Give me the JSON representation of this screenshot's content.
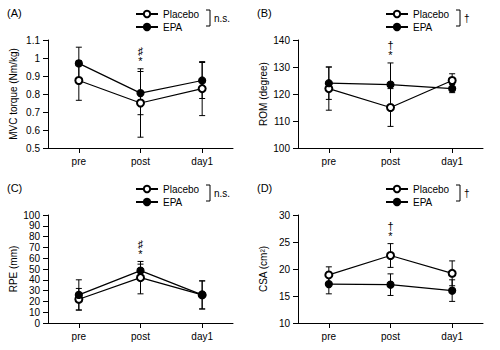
{
  "chart_data": [
    {
      "type": "line",
      "title": "(A)",
      "y_label": "MVC torque (Nm/kg)",
      "categories": [
        "pre",
        "post",
        "day1"
      ],
      "series": [
        {
          "name": "Placebo",
          "color": "#000000",
          "marker": "circle_open",
          "line_style": "solid",
          "values": [
            0.875,
            0.75,
            0.83
          ],
          "errors": [
            0.11,
            0.19,
            0.15
          ]
        },
        {
          "name": "EPA",
          "color": "#000000",
          "marker": "circle",
          "line_style": "solid",
          "values": [
            0.97,
            0.805,
            0.875
          ],
          "errors": [
            0.09,
            0.12,
            0.1
          ]
        }
      ],
      "ylim": [
        0.5,
        1.1
      ],
      "yticks": [
        0.5,
        0.6,
        0.7,
        0.8,
        0.9,
        1,
        1.1
      ],
      "grid": false,
      "legend": "upper right",
      "legend_note": "n.s.",
      "annotations": [
        {
          "text": "♯",
          "x": "post"
        },
        {
          "text": "*",
          "x": "post"
        }
      ]
    },
    {
      "type": "line",
      "title": "(B)",
      "y_label": "ROM (degree)",
      "categories": [
        "pre",
        "post",
        "day1"
      ],
      "series": [
        {
          "name": "Placebo",
          "color": "#000000",
          "marker": "circle_open",
          "line_style": "solid",
          "values": [
            122,
            115,
            125
          ],
          "errors": [
            8,
            7,
            2.5
          ]
        },
        {
          "name": "EPA",
          "color": "#000000",
          "marker": "circle",
          "line_style": "solid",
          "values": [
            124,
            123.5,
            122
          ],
          "errors": [
            6,
            8,
            1.5
          ]
        }
      ],
      "ylim": [
        100,
        140
      ],
      "yticks": [
        100,
        110,
        120,
        130,
        140
      ],
      "grid": false,
      "legend": "upper right",
      "legend_note": "†",
      "annotations": [
        {
          "text": "†",
          "x": "post"
        },
        {
          "text": "*",
          "x": "post"
        }
      ]
    },
    {
      "type": "line",
      "title": "(C)",
      "y_label": "RPE (mm)",
      "categories": [
        "pre",
        "post",
        "day1"
      ],
      "series": [
        {
          "name": "Placebo",
          "color": "#000000",
          "marker": "circle_open",
          "line_style": "solid",
          "values": [
            22,
            42,
            26
          ],
          "errors": [
            10,
            15,
            13
          ]
        },
        {
          "name": "EPA",
          "color": "#000000",
          "marker": "circle",
          "line_style": "solid",
          "values": [
            26,
            48.5,
            26
          ],
          "errors": [
            14,
            6,
            13
          ]
        }
      ],
      "ylim": [
        0,
        100
      ],
      "yticks": [
        0,
        10,
        20,
        30,
        40,
        50,
        60,
        70,
        80,
        90,
        100
      ],
      "grid": false,
      "legend": "upper right",
      "legend_note": "n.s.",
      "annotations": [
        {
          "text": "♯",
          "x": "post"
        },
        {
          "text": "*",
          "x": "post"
        }
      ]
    },
    {
      "type": "line",
      "title": "(D)",
      "y_label": "CSA (cm²)",
      "categories": [
        "pre",
        "post",
        "day1"
      ],
      "series": [
        {
          "name": "Placebo",
          "color": "#000000",
          "marker": "circle_open",
          "line_style": "solid",
          "values": [
            18.9,
            22.5,
            19.2
          ],
          "errors": [
            1.5,
            2.2,
            2.3
          ]
        },
        {
          "name": "EPA",
          "color": "#000000",
          "marker": "circle",
          "line_style": "solid",
          "values": [
            17.2,
            17.1,
            16
          ],
          "errors": [
            1.8,
            2,
            2
          ]
        }
      ],
      "ylim": [
        10,
        30
      ],
      "yticks": [
        10,
        15,
        20,
        25,
        30
      ],
      "grid": false,
      "legend": "upper right",
      "legend_note": "†",
      "annotations": [
        {
          "text": "†",
          "x": "post"
        },
        {
          "text": "*",
          "x": "post"
        }
      ]
    }
  ]
}
